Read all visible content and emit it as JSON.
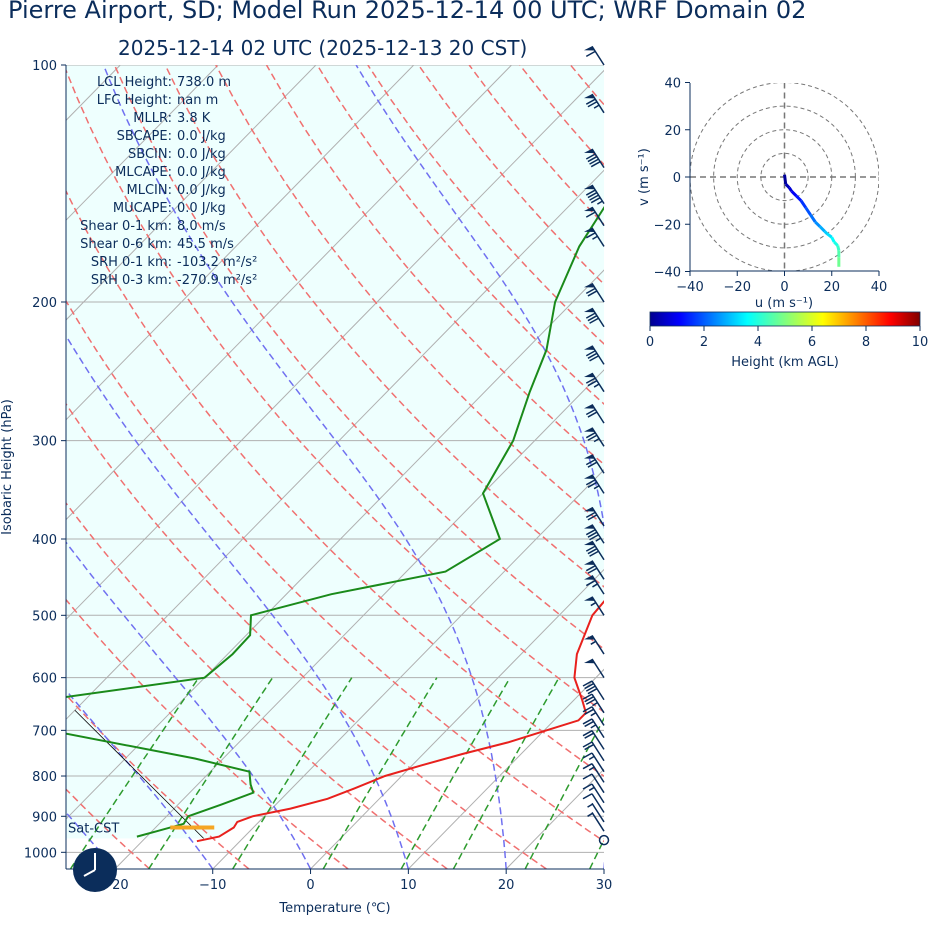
{
  "title": "Pierre Airport, SD; Model Run 2025-12-14 00 UTC; WRF Domain 02",
  "subtitle": "2025-12-14 02 UTC  (2025-12-13 20 CST)",
  "colors": {
    "text": "#0b2d5b",
    "temperature": "#e8211d",
    "dewpoint": "#1a8a1a",
    "dry_adiabat": "#f07070",
    "moist_adiabat": "#7070f0",
    "mixing_ratio": "#2e9b2e",
    "isotherm": "#b0b0b0",
    "shading": "#eefffe",
    "sat_cst": "#f5a623",
    "barb": "#0b2d5b"
  },
  "params": [
    {
      "label": "LCL Height:",
      "value": "738.0 m"
    },
    {
      "label": "LFC Height:",
      "value": "nan m"
    },
    {
      "label": "MLLR:",
      "value": "3.8 K"
    },
    {
      "label": "SBCAPE:",
      "value": "0.0 J/kg"
    },
    {
      "label": "SBCIN:",
      "value": "0.0 J/kg"
    },
    {
      "label": "MLCAPE:",
      "value": "0.0 J/kg"
    },
    {
      "label": "MLCIN:",
      "value": "0.0 J/kg"
    },
    {
      "label": "MUCAPE:",
      "value": "0.0 J/kg"
    },
    {
      "label": "Shear 0-1 km:",
      "value": "8.0 m/s"
    },
    {
      "label": "Shear 0-6 km:",
      "value": "45.5 m/s"
    },
    {
      "label": "SRH 0-1 km:",
      "value": "-103.2 m²/s²"
    },
    {
      "label": "SRH 0-3 km:",
      "value": "-270.9 m²/s²"
    }
  ],
  "sat_cst_label": "Sat-CST",
  "chart_data": [
    {
      "type": "line",
      "subtype": "skew-t",
      "xlabel": "Temperature (℃)",
      "ylabel": "Isobaric Height (hPa)",
      "xlim": [
        -25,
        30
      ],
      "ylim": [
        1050,
        100
      ],
      "y_scale": "log",
      "x_ticks": [
        -20,
        -10,
        0,
        10,
        20,
        30
      ],
      "x_tick_labels": [
        "−20",
        "−10",
        "0",
        "10",
        "20",
        "30"
      ],
      "y_ticks": [
        100,
        200,
        300,
        400,
        500,
        600,
        700,
        800,
        900,
        1000
      ],
      "y_tick_labels": [
        "100",
        "200",
        "300",
        "400",
        "500",
        "600",
        "700",
        "800",
        "900",
        "1000"
      ],
      "grid": true,
      "series": [
        {
          "role": "temperature",
          "pressure": [
            968,
            955,
            930,
            915,
            900,
            880,
            855,
            830,
            800,
            775,
            750,
            725,
            700,
            680,
            665,
            640,
            600,
            560,
            500,
            450,
            425,
            400,
            350,
            300,
            250,
            230,
            210,
            190,
            175,
            160,
            145,
            125,
            110,
            100
          ],
          "temp": [
            -14.4,
            -12.6,
            -12.0,
            -12.2,
            -11.2,
            -8.1,
            -5.3,
            -3.6,
            -1.7,
            1.0,
            4.0,
            7.5,
            10.2,
            12.5,
            12.5,
            10.8,
            7.8,
            5.7,
            3.4,
            2.9,
            2.4,
            1.0,
            -2.0,
            -6.8,
            -11.1,
            -13.3,
            -14.5,
            -13.6,
            -9.7,
            -4.8,
            -1.3,
            3.3,
            7.2,
            11.1
          ]
        },
        {
          "role": "dewpoint",
          "pressure": [
            955,
            940,
            920,
            900,
            870,
            840,
            820,
            790,
            760,
            700,
            670,
            640,
            600,
            560,
            530,
            500,
            470,
            440,
            400,
            350,
            300,
            260,
            230,
            200,
            170,
            140,
            125,
            110,
            100
          ],
          "temp": [
            -21,
            -19.5,
            -17.5,
            -17.8,
            -15.6,
            -13.5,
            -14.6,
            -16.0,
            -22.9,
            -40.6,
            -42.9,
            -43.9,
            -30.0,
            -29.5,
            -29.6,
            -31.5,
            -25.4,
            -16.0,
            -13.7,
            -20.0,
            -22.2,
            -25.4,
            -27.9,
            -31.8,
            -34.9,
            -37.2,
            -35.0,
            -32.9,
            -31.5
          ]
        }
      ],
      "sat_cst": {
        "pressure": 930,
        "t_start": -18.5,
        "t_end": -14.0
      },
      "wind_barbs": [
        {
          "pressure": 965,
          "speed_kt": 0
        },
        {
          "pressure": 940,
          "speed_kt": 5
        },
        {
          "pressure": 915,
          "speed_kt": 5
        },
        {
          "pressure": 890,
          "speed_kt": 10
        },
        {
          "pressure": 865,
          "speed_kt": 15
        },
        {
          "pressure": 840,
          "speed_kt": 10
        },
        {
          "pressure": 815,
          "speed_kt": 15
        },
        {
          "pressure": 790,
          "speed_kt": 15
        },
        {
          "pressure": 765,
          "speed_kt": 20
        },
        {
          "pressure": 740,
          "speed_kt": 20
        },
        {
          "pressure": 715,
          "speed_kt": 25
        },
        {
          "pressure": 690,
          "speed_kt": 25
        },
        {
          "pressure": 665,
          "speed_kt": 35
        },
        {
          "pressure": 640,
          "speed_kt": 40
        },
        {
          "pressure": 600,
          "speed_kt": 50
        },
        {
          "pressure": 560,
          "speed_kt": 55
        },
        {
          "pressure": 500,
          "speed_kt": 55
        },
        {
          "pressure": 470,
          "speed_kt": 65
        },
        {
          "pressure": 450,
          "speed_kt": 70
        },
        {
          "pressure": 425,
          "speed_kt": 80
        },
        {
          "pressure": 405,
          "speed_kt": 85
        },
        {
          "pressure": 385,
          "speed_kt": 70
        },
        {
          "pressure": 350,
          "speed_kt": 75
        },
        {
          "pressure": 330,
          "speed_kt": 70
        },
        {
          "pressure": 305,
          "speed_kt": 75
        },
        {
          "pressure": 285,
          "speed_kt": 70
        },
        {
          "pressure": 260,
          "speed_kt": 75
        },
        {
          "pressure": 240,
          "speed_kt": 80
        },
        {
          "pressure": 215,
          "speed_kt": 80
        },
        {
          "pressure": 200,
          "speed_kt": 70
        },
        {
          "pressure": 170,
          "speed_kt": 65
        },
        {
          "pressure": 160,
          "speed_kt": 60
        },
        {
          "pressure": 150,
          "speed_kt": 95
        },
        {
          "pressure": 135,
          "speed_kt": 90
        },
        {
          "pressure": 115,
          "speed_kt": 75
        },
        {
          "pressure": 100,
          "speed_kt": 60
        }
      ]
    },
    {
      "type": "line",
      "subtype": "hodograph",
      "xlabel": "u (m s⁻¹)",
      "ylabel": "v (m s⁻¹)",
      "xlim": [
        -40,
        40
      ],
      "ylim": [
        -40,
        40
      ],
      "x_ticks": [
        -40,
        -20,
        0,
        20,
        40
      ],
      "x_tick_labels": [
        "−40",
        "−20",
        "0",
        "20",
        "40"
      ],
      "y_ticks": [
        40,
        20,
        0,
        -20,
        -40
      ],
      "y_tick_labels": [
        "40",
        "20",
        "0",
        "−20",
        "−40"
      ],
      "rings": [
        10,
        20,
        30,
        40
      ],
      "u": [
        0,
        0.5,
        2,
        3,
        5,
        7,
        9,
        11,
        13,
        15,
        17,
        18,
        20,
        21,
        22.5,
        23,
        23,
        23
      ],
      "v": [
        1,
        -3,
        -4.5,
        -6,
        -8,
        -10,
        -13,
        -16,
        -19,
        -21,
        -23,
        -24,
        -25.5,
        -27.5,
        -29,
        -31,
        -34,
        -38
      ],
      "height_km": [
        0.1,
        0.4,
        0.7,
        1.0,
        1.3,
        1.6,
        1.9,
        2.2,
        2.5,
        2.8,
        3.1,
        3.3,
        3.6,
        3.9,
        4.2,
        4.5,
        4.8,
        5.2
      ],
      "colorbar": {
        "label": "Height (km AGL)",
        "ticks": [
          0,
          2,
          4,
          6,
          8,
          10
        ],
        "tick_labels": [
          "0",
          "2",
          "4",
          "6",
          "8",
          "10"
        ],
        "colormap": "jet"
      }
    }
  ]
}
